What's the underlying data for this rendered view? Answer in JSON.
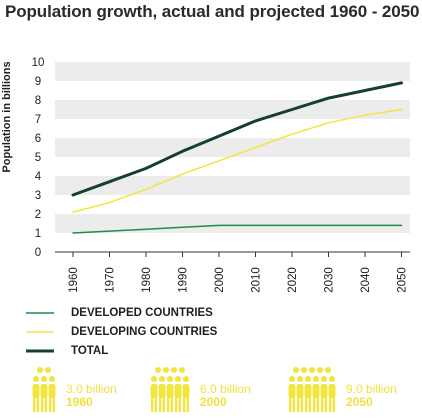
{
  "title": "Population growth, actual and projected 1960 - 2050",
  "colors": {
    "developed": "#1f8c4e",
    "developing": "#f2e53f",
    "total": "#17402a",
    "band": "#ececec",
    "people": "#f2e53f"
  },
  "legend": [
    {
      "label": "DEVELOPED COUNTRIES",
      "color": "#1f8c4e",
      "stroke": "thin"
    },
    {
      "label": "DEVELOPING COUNTRIES",
      "color": "#f2e53f",
      "stroke": "thin"
    },
    {
      "label": "TOTAL",
      "color": "#17402a",
      "stroke": "thick"
    }
  ],
  "people_groups": [
    {
      "amount": "3.0 billion",
      "year": "1960",
      "icon": "people-group-icon"
    },
    {
      "amount": "6.0 billion",
      "year": "2000",
      "icon": "people-group-icon"
    },
    {
      "amount": "9.0 billion",
      "year": "2050",
      "icon": "people-group-icon"
    }
  ],
  "chart_data": {
    "type": "line",
    "title": "Population growth, actual and projected 1960 - 2050",
    "xlabel": "",
    "ylabel": "Population in billions",
    "x": [
      1960,
      1970,
      1980,
      1990,
      2000,
      2010,
      2020,
      2030,
      2040,
      2050
    ],
    "ylim": [
      0,
      10
    ],
    "yticks": [
      0,
      1,
      2,
      3,
      4,
      5,
      6,
      7,
      8,
      9,
      10
    ],
    "grid": "alternating horizontal bands",
    "legend_position": "bottom-left",
    "series": [
      {
        "name": "DEVELOPED COUNTRIES",
        "key": "developed",
        "values": [
          1.0,
          1.1,
          1.2,
          1.3,
          1.4,
          1.4,
          1.4,
          1.4,
          1.4,
          1.4
        ]
      },
      {
        "name": "DEVELOPING COUNTRIES",
        "key": "developing",
        "values": [
          2.1,
          2.6,
          3.3,
          4.1,
          4.8,
          5.5,
          6.2,
          6.8,
          7.2,
          7.5
        ]
      },
      {
        "name": "TOTAL",
        "key": "total",
        "values": [
          3.0,
          3.7,
          4.4,
          5.3,
          6.1,
          6.9,
          7.5,
          8.1,
          8.5,
          8.9
        ]
      }
    ]
  }
}
